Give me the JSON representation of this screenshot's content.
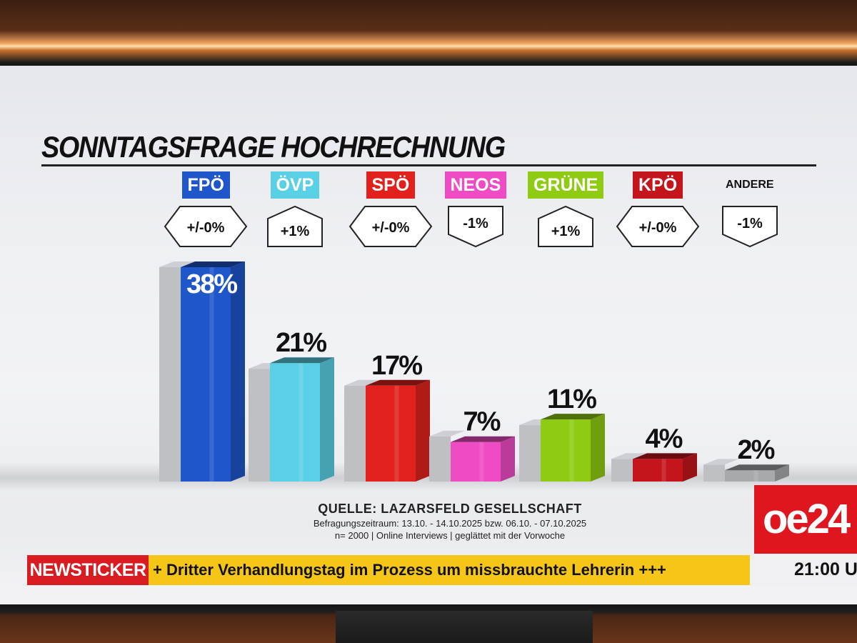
{
  "colors": {
    "fpoe": "#1f56c9",
    "oevp": "#5ad0e6",
    "spoe": "#e2211d",
    "neos": "#ee4bc4",
    "gruene": "#8fcb12",
    "kpoe": "#c4151c",
    "andere": "#a8a9ad",
    "previous": "#bfc0c4",
    "newsticker_red": "#d91b22",
    "newsticker_yellow": "#f5c518",
    "brand": "#e0161e"
  },
  "chart_data": {
    "type": "bar",
    "title": "SONNTAGSFRAGE HOCHRECHNUNG",
    "categories": [
      "FPÖ",
      "ÖVP",
      "SPÖ",
      "NEOS",
      "GRÜNE",
      "KPÖ",
      "ANDERE"
    ],
    "series": [
      {
        "name": "Hochrechnung",
        "values": [
          38,
          21,
          17,
          7,
          11,
          4,
          2
        ]
      },
      {
        "name": "Vorwoche",
        "values": [
          38,
          20,
          17,
          8,
          10,
          4,
          3
        ]
      }
    ],
    "value_labels": [
      "38%",
      "21%",
      "17%",
      "7%",
      "11%",
      "4%",
      "2%"
    ],
    "changes": [
      {
        "text": "+/-0%",
        "dir": "same"
      },
      {
        "text": "+1%",
        "dir": "up"
      },
      {
        "text": "+/-0%",
        "dir": "same"
      },
      {
        "text": "-1%",
        "dir": "down"
      },
      {
        "text": "+1%",
        "dir": "up"
      },
      {
        "text": "+/-0%",
        "dir": "same"
      },
      {
        "text": "-1%",
        "dir": "down"
      }
    ],
    "ylim": [
      0,
      40
    ],
    "xlabel": "",
    "ylabel": ""
  },
  "source": {
    "title": "QUELLE: LAZARSFELD GESELLSCHAFT",
    "period": "Befragungszeitraum:  13.10. - 14.10.2025  bzw. 06.10. - 07.10.2025",
    "method": "n= 2000 | Online Interviews | geglättet mit der Vorwoche"
  },
  "logo": {
    "text": "oe24"
  },
  "ticker": {
    "label": "NEWSTICKER",
    "text": "+ Dritter Verhandlungstag im Prozess um missbrauchte Lehrerin +++",
    "time": "21:00 U"
  }
}
